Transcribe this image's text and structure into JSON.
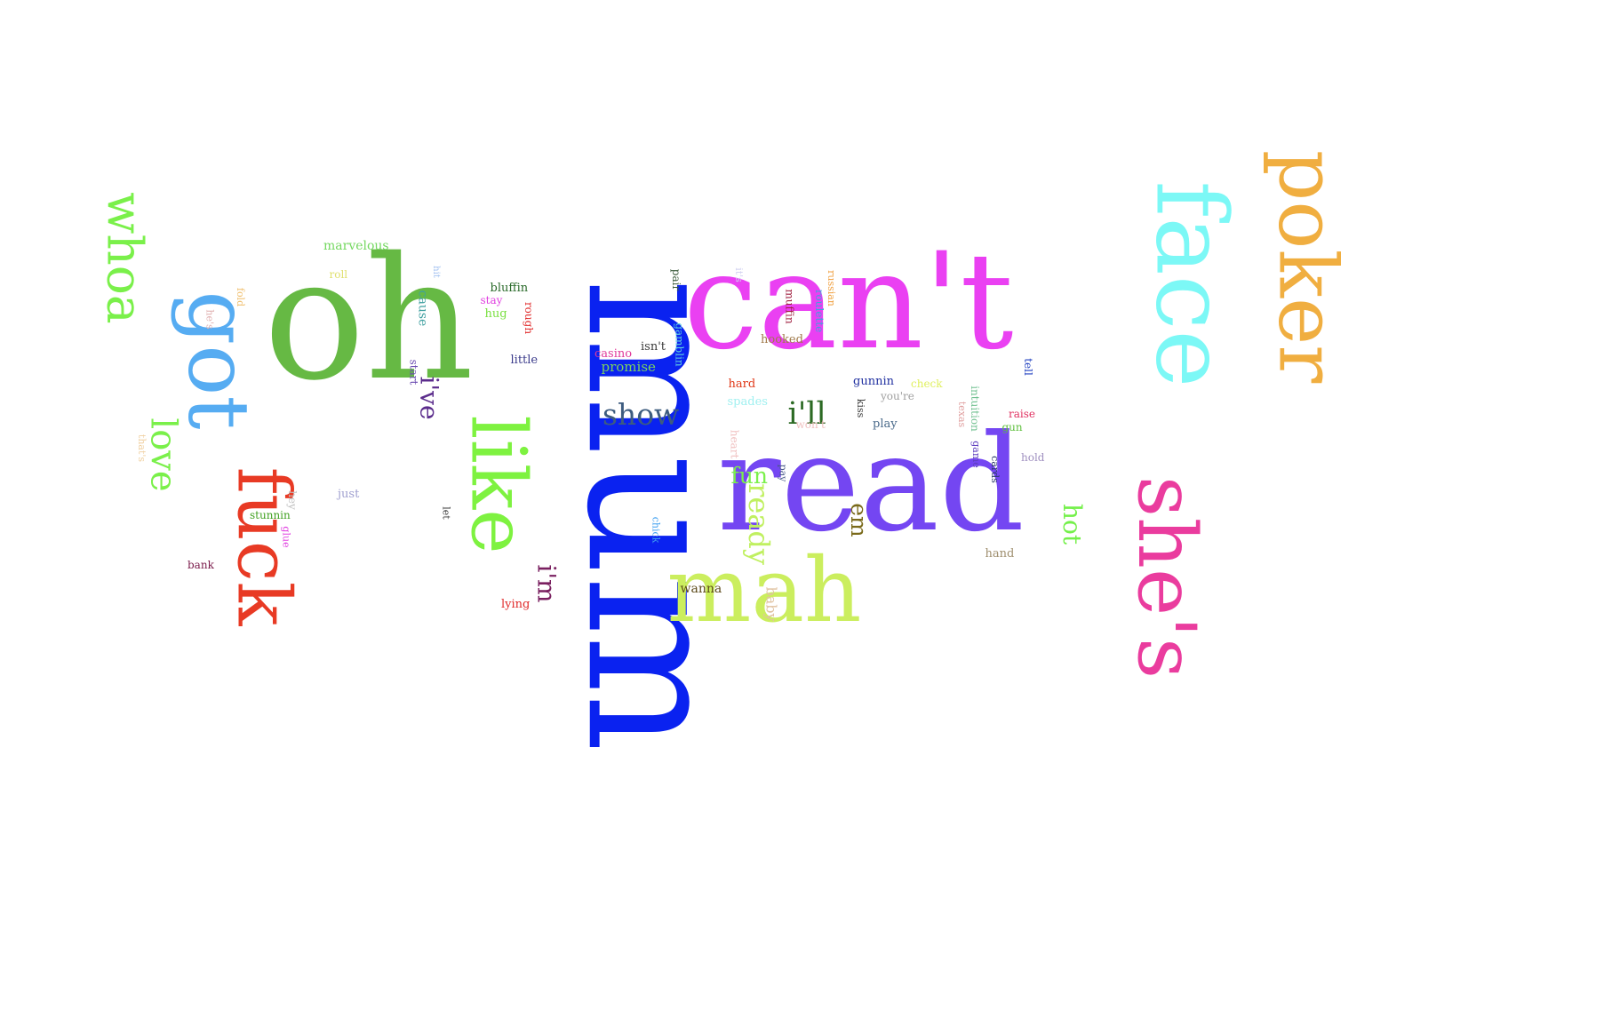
{
  "word_cloud": {
    "words": [
      {
        "text": "mum",
        "color": "#0a22f0"
      },
      {
        "text": "can't",
        "color": "#ea40f2"
      },
      {
        "text": "read",
        "color": "#7446f2"
      },
      {
        "text": "oh",
        "color": "#66b944"
      },
      {
        "text": "poker",
        "color": "#f0ae40"
      },
      {
        "text": "face",
        "color": "#7cf8f6"
      },
      {
        "text": "she's",
        "color": "#ea3c9e"
      },
      {
        "text": "mah",
        "color": "#cbee5e"
      },
      {
        "text": "like",
        "color": "#7ef240"
      },
      {
        "text": "got",
        "color": "#56acf2"
      },
      {
        "text": "fuck",
        "color": "#e83a24"
      },
      {
        "text": "whoa",
        "color": "#7af04a"
      },
      {
        "text": "love",
        "color": "#7af04a"
      },
      {
        "text": "show",
        "color": "#3d5c7f"
      },
      {
        "text": "i'll",
        "color": "#2c6a24"
      },
      {
        "text": "i've",
        "color": "#5b2c8c"
      },
      {
        "text": "ready",
        "color": "#c0f060"
      },
      {
        "text": "em",
        "color": "#7a6a1a"
      },
      {
        "text": "hot",
        "color": "#74f04a"
      },
      {
        "text": "fun",
        "color": "#7af04a"
      },
      {
        "text": "i'm",
        "color": "#7a2060"
      },
      {
        "text": "wanna",
        "color": "#5c4a1a"
      },
      {
        "text": "baby",
        "color": "#e0c2a0"
      },
      {
        "text": "marvelous",
        "color": "#74d860"
      },
      {
        "text": "roll",
        "color": "#e0e070"
      },
      {
        "text": "fold",
        "color": "#f0c070"
      },
      {
        "text": "he's",
        "color": "#e0b0b0"
      },
      {
        "text": "hit",
        "color": "#a0c0f0"
      },
      {
        "text": "cause",
        "color": "#40a0a0"
      },
      {
        "text": "bluffin",
        "color": "#2a6a2a"
      },
      {
        "text": "stay",
        "color": "#e040e0"
      },
      {
        "text": "hug",
        "color": "#7ae040"
      },
      {
        "text": "rough",
        "color": "#e02a2a"
      },
      {
        "text": "little",
        "color": "#3a3a8a"
      },
      {
        "text": "start",
        "color": "#6a4ab0"
      },
      {
        "text": "pair",
        "color": "#3a5a3a"
      },
      {
        "text": "it's",
        "color": "#d0d0f0"
      },
      {
        "text": "casino",
        "color": "#e03a9a"
      },
      {
        "text": "isn't",
        "color": "#3a3a3a"
      },
      {
        "text": "gamblin",
        "color": "#60d0e0"
      },
      {
        "text": "promise",
        "color": "#7ad060"
      },
      {
        "text": "russian",
        "color": "#f0a040"
      },
      {
        "text": "muffin",
        "color": "#a02040"
      },
      {
        "text": "roulette",
        "color": "#40a0e0"
      },
      {
        "text": "hooked",
        "color": "#a07a4a"
      },
      {
        "text": "tell",
        "color": "#2040c0"
      },
      {
        "text": "hard",
        "color": "#e03a1a"
      },
      {
        "text": "spades",
        "color": "#a0f0f0"
      },
      {
        "text": "gunnin",
        "color": "#2030a0"
      },
      {
        "text": "check",
        "color": "#e0f060"
      },
      {
        "text": "intuition",
        "color": "#70c090"
      },
      {
        "text": "you're",
        "color": "#a0a0a0"
      },
      {
        "text": "kiss",
        "color": "#3a3a3a"
      },
      {
        "text": "texas",
        "color": "#e0a0a0"
      },
      {
        "text": "raise",
        "color": "#e03060"
      },
      {
        "text": "gun",
        "color": "#60c040"
      },
      {
        "text": "play",
        "color": "#4a6a8a"
      },
      {
        "text": "won't",
        "color": "#f0c0c0"
      },
      {
        "text": "heart",
        "color": "#f0c0c0"
      },
      {
        "text": "game",
        "color": "#6040c0"
      },
      {
        "text": "cards",
        "color": "#2a3a6a"
      },
      {
        "text": "hold",
        "color": "#a090c0"
      },
      {
        "text": "that's",
        "color": "#f0d0a0"
      },
      {
        "text": "hey",
        "color": "#c0c0c0"
      },
      {
        "text": "glue",
        "color": "#e040e0"
      },
      {
        "text": "stunnin",
        "color": "#40a020"
      },
      {
        "text": "just",
        "color": "#a0a0d0"
      },
      {
        "text": "let",
        "color": "#3a3a3a"
      },
      {
        "text": "bank",
        "color": "#7a1a4a"
      },
      {
        "text": "pay",
        "color": "#4a5a8a"
      },
      {
        "text": "chick",
        "color": "#40a0f0"
      },
      {
        "text": "hand",
        "color": "#a09070"
      },
      {
        "text": "lying",
        "color": "#e02a2a"
      }
    ]
  }
}
